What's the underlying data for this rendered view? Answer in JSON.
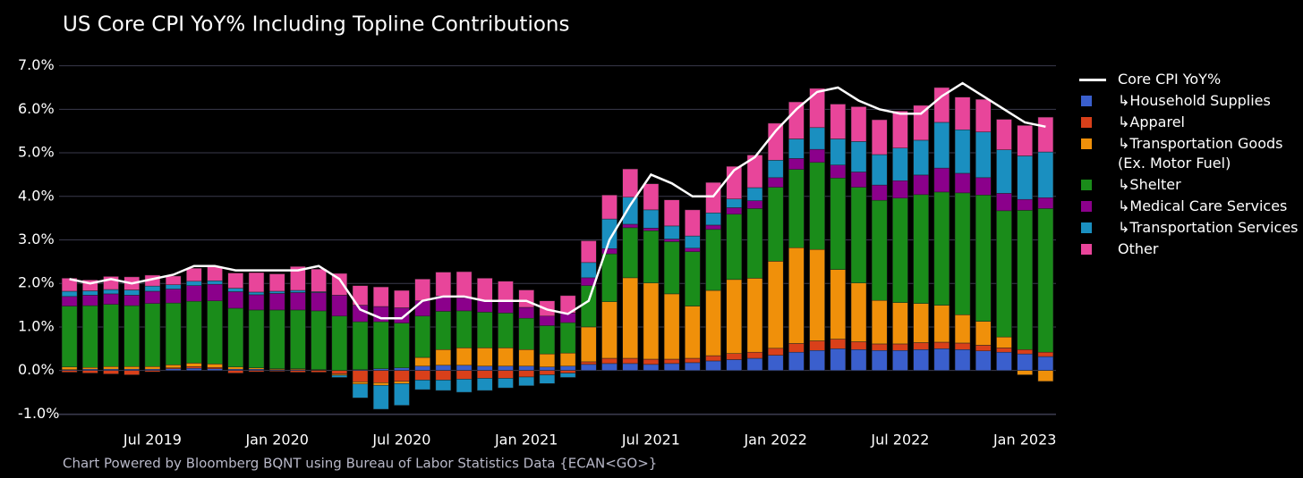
{
  "chart_data": {
    "type": "bar",
    "stacked": true,
    "title": "US Core CPI YoY% Including Topline Contributions",
    "footnote": "Chart Powered by Bloomberg BQNT using Bureau of Labor Statistics Data   {ECAN<GO>}",
    "categories": [
      null,
      null,
      null,
      null,
      "Jul 2019",
      null,
      null,
      null,
      null,
      null,
      "Jan 2020",
      null,
      null,
      null,
      null,
      null,
      "Jul 2020",
      null,
      null,
      null,
      null,
      null,
      "Jan 2021",
      null,
      null,
      null,
      null,
      null,
      "Jul 2021",
      null,
      null,
      null,
      null,
      null,
      "Jan 2022",
      null,
      null,
      null,
      null,
      null,
      "Jul 2022",
      null,
      null,
      null,
      null,
      null,
      "Jan 2023",
      null
    ],
    "ylim": [
      -1.3,
      7.3
    ],
    "yticks": [
      {
        "value": -1,
        "label": "-1.0%"
      },
      {
        "value": 0,
        "label": "0.0%"
      },
      {
        "value": 1,
        "label": "1.0%"
      },
      {
        "value": 2,
        "label": "2.0%"
      },
      {
        "value": 3,
        "label": "3.0%"
      },
      {
        "value": 4,
        "label": "4.0%"
      },
      {
        "value": 5,
        "label": "5.0%"
      },
      {
        "value": 6,
        "label": "6.0%"
      },
      {
        "value": 7,
        "label": "7.0%"
      }
    ],
    "grid": true,
    "line": {
      "name": "Core CPI YoY%",
      "color": "#ffffff",
      "values": [
        2.1,
        2.0,
        2.1,
        2.0,
        2.1,
        2.2,
        2.4,
        2.4,
        2.3,
        2.3,
        2.3,
        2.3,
        2.4,
        2.1,
        1.4,
        1.2,
        1.2,
        1.6,
        1.7,
        1.7,
        1.6,
        1.6,
        1.6,
        1.4,
        1.3,
        1.6,
        3.0,
        3.8,
        4.5,
        4.3,
        4.0,
        4.0,
        4.6,
        4.9,
        5.5,
        6.0,
        6.4,
        6.5,
        6.2,
        6.0,
        5.9,
        5.9,
        6.3,
        6.6,
        6.3,
        6.0,
        5.7,
        5.6
      ]
    },
    "series": [
      {
        "name": "↳Household Supplies",
        "color": "#3a5fcd",
        "values": [
          0.02,
          0.03,
          0.03,
          0.03,
          0.03,
          0.04,
          0.05,
          0.04,
          0.03,
          0.03,
          0.02,
          0.02,
          0.01,
          0,
          0.02,
          0.04,
          0.06,
          0.1,
          0.12,
          0.12,
          0.1,
          0.1,
          0.1,
          0.08,
          0.1,
          0.14,
          0.16,
          0.16,
          0.14,
          0.16,
          0.18,
          0.22,
          0.25,
          0.28,
          0.35,
          0.42,
          0.46,
          0.5,
          0.48,
          0.46,
          0.46,
          0.48,
          0.5,
          0.48,
          0.45,
          0.42,
          0.38,
          0.32
        ]
      },
      {
        "name": "↳Apparel",
        "color": "#d9401a",
        "values": [
          -0.04,
          -0.06,
          -0.08,
          -0.1,
          -0.03,
          0.02,
          0.04,
          0.03,
          -0.06,
          -0.03,
          -0.02,
          -0.04,
          -0.04,
          -0.08,
          -0.26,
          -0.28,
          -0.25,
          -0.22,
          -0.22,
          -0.2,
          -0.18,
          -0.18,
          -0.15,
          -0.1,
          -0.06,
          0.06,
          0.12,
          0.12,
          0.12,
          0.1,
          0.1,
          0.12,
          0.14,
          0.14,
          0.16,
          0.2,
          0.22,
          0.22,
          0.18,
          0.15,
          0.15,
          0.16,
          0.15,
          0.15,
          0.13,
          0.1,
          0.1,
          0.1
        ]
      },
      {
        "name": "↳Transportation Goods (Ex. Motor Fuel)",
        "color": "#f0900a",
        "values": [
          0.06,
          0.04,
          0.06,
          0.06,
          0.06,
          0.07,
          0.08,
          0.08,
          0.05,
          0.03,
          0.02,
          0.02,
          0.01,
          -0.03,
          -0.05,
          -0.06,
          -0.05,
          0.2,
          0.36,
          0.4,
          0.42,
          0.42,
          0.38,
          0.3,
          0.3,
          0.8,
          1.3,
          1.85,
          1.75,
          1.5,
          1.2,
          1.5,
          1.7,
          1.7,
          2.0,
          2.2,
          2.1,
          1.6,
          1.35,
          1.0,
          0.95,
          0.9,
          0.85,
          0.65,
          0.55,
          0.25,
          -0.1,
          -0.25
        ]
      },
      {
        "name": "↳Shelter",
        "color": "#1a8c1a",
        "values": [
          1.4,
          1.42,
          1.43,
          1.4,
          1.45,
          1.42,
          1.42,
          1.45,
          1.35,
          1.33,
          1.35,
          1.35,
          1.35,
          1.25,
          1.1,
          1.08,
          1.03,
          0.95,
          0.88,
          0.85,
          0.82,
          0.8,
          0.72,
          0.65,
          0.7,
          0.95,
          1.1,
          1.15,
          1.2,
          1.2,
          1.25,
          1.4,
          1.5,
          1.6,
          1.7,
          1.8,
          2.0,
          2.1,
          2.2,
          2.3,
          2.4,
          2.5,
          2.6,
          2.8,
          2.9,
          2.9,
          3.2,
          3.3
        ]
      },
      {
        "name": "↳Medical Care Services",
        "color": "#8b008b",
        "values": [
          0.22,
          0.24,
          0.24,
          0.24,
          0.28,
          0.32,
          0.36,
          0.38,
          0.38,
          0.35,
          0.38,
          0.4,
          0.42,
          0.48,
          0.38,
          0.35,
          0.35,
          0.35,
          0.35,
          0.3,
          0.28,
          0.28,
          0.25,
          0.22,
          0.22,
          0.18,
          0.12,
          0.08,
          0.06,
          0.06,
          0.08,
          0.1,
          0.15,
          0.18,
          0.22,
          0.25,
          0.3,
          0.3,
          0.35,
          0.35,
          0.4,
          0.45,
          0.55,
          0.45,
          0.4,
          0.4,
          0.25,
          0.25
        ]
      },
      {
        "name": "↳Transportation Services",
        "color": "#1a8fc0",
        "values": [
          0.12,
          0.1,
          0.1,
          0.12,
          0.12,
          0.1,
          0.1,
          0.08,
          0.08,
          0.06,
          0.05,
          0.05,
          0.02,
          -0.05,
          -0.32,
          -0.55,
          -0.5,
          -0.22,
          -0.24,
          -0.3,
          -0.28,
          -0.22,
          -0.2,
          -0.2,
          -0.1,
          0.35,
          0.68,
          0.62,
          0.42,
          0.3,
          0.28,
          0.28,
          0.2,
          0.3,
          0.4,
          0.45,
          0.5,
          0.6,
          0.7,
          0.7,
          0.75,
          0.8,
          1.05,
          1.0,
          1.05,
          1.0,
          1.0,
          1.05
        ]
      },
      {
        "name": "Other",
        "color": "#e8459a",
        "values": [
          0.3,
          0.25,
          0.3,
          0.3,
          0.25,
          0.2,
          0.3,
          0.32,
          0.35,
          0.45,
          0.4,
          0.55,
          0.52,
          0.5,
          0.45,
          0.45,
          0.4,
          0.5,
          0.55,
          0.6,
          0.5,
          0.45,
          0.4,
          0.35,
          0.4,
          0.5,
          0.55,
          0.65,
          0.6,
          0.6,
          0.6,
          0.7,
          0.75,
          0.75,
          0.85,
          0.85,
          0.9,
          0.8,
          0.8,
          0.8,
          0.85,
          0.8,
          0.8,
          0.75,
          0.75,
          0.7,
          0.7,
          0.8
        ]
      }
    ]
  }
}
